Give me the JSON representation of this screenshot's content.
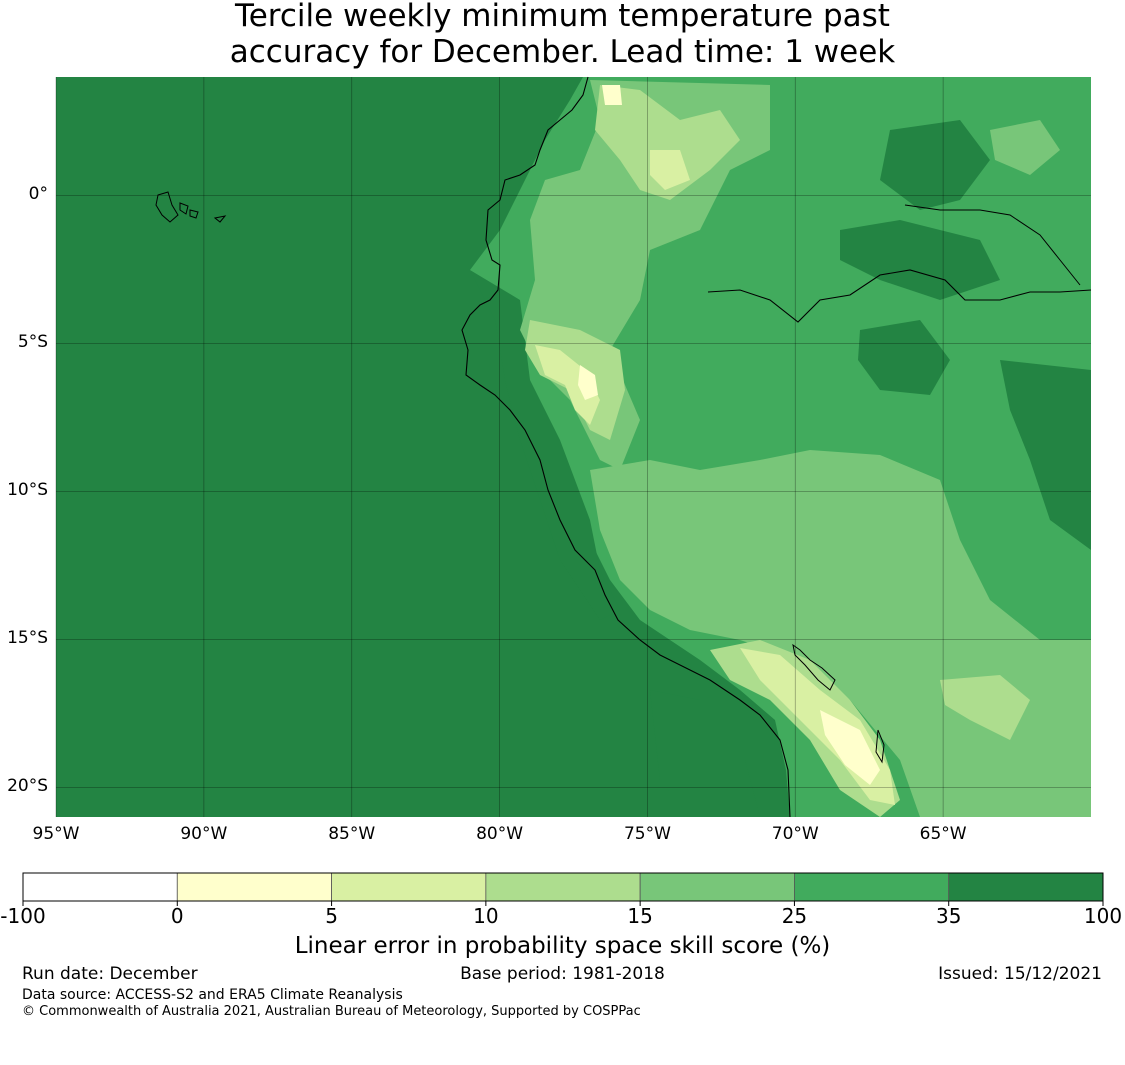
{
  "title": {
    "line1": "Tercile weekly minimum temperature past",
    "line2": "accuracy for December. Lead time: 1 week"
  },
  "map": {
    "lat_labels": [
      "0°",
      "5°S",
      "10°S",
      "15°S",
      "20°S"
    ],
    "lat_values": [
      0,
      -5,
      -10,
      -15,
      -20
    ],
    "lon_labels": [
      "95°W",
      "90°W",
      "85°W",
      "80°W",
      "75°W",
      "70°W",
      "65°W"
    ],
    "lon_values": [
      -95,
      -90,
      -85,
      -80,
      -75,
      -70,
      -65
    ],
    "extent": {
      "lon_min": -95,
      "lon_max": -60,
      "lat_min": -21,
      "lat_max": 4
    },
    "ocean_color": "#238443",
    "gridlines": true
  },
  "colorbar": {
    "ticks": [
      "-100",
      "0",
      "5",
      "10",
      "15",
      "25",
      "35",
      "100"
    ],
    "colors": [
      "#ffffff",
      "#ffffcc",
      "#d9f0a3",
      "#addd8e",
      "#78c679",
      "#41ab5d",
      "#238443"
    ],
    "label": "Linear error in probability space skill score (%)"
  },
  "footer": {
    "run_date": "Run date: December",
    "base_period": "Base period: 1981-2018",
    "issued": "Issued: 15/12/2021",
    "data_source": "Data source: ACCESS-S2 and ERA5 Climate Reanalysis",
    "copyright": "© Commonwealth of Australia 2021, Australian Bureau of Meteorology, Supported by COSPPac"
  }
}
